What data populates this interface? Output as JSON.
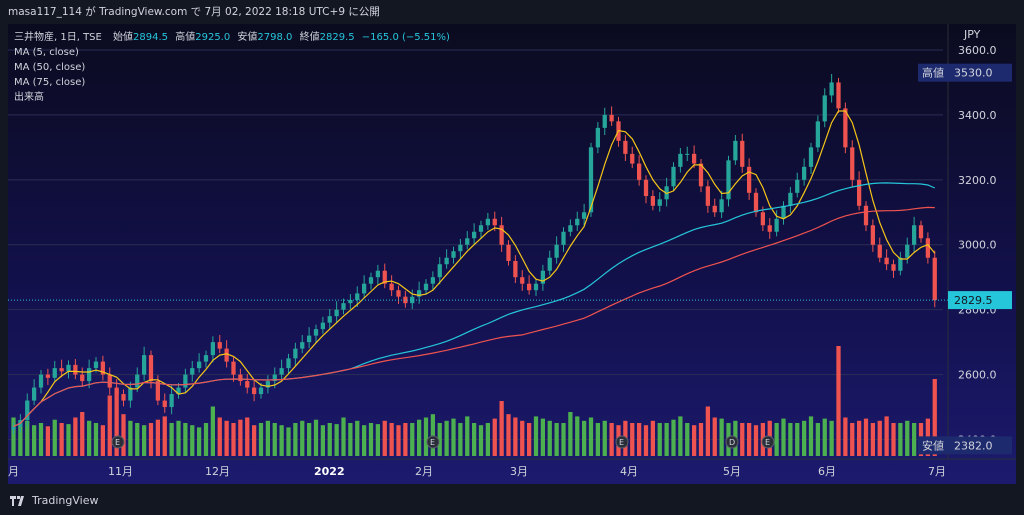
{
  "header": {
    "publisher": "masa117_114 が TradingView.com で 7月 02, 2022 18:18 UTC+9 に公開"
  },
  "legend": {
    "symbol": "三井物産, 1日, TSE",
    "open_label": "始値",
    "open": "2894.5",
    "high_label": "高値",
    "high": "2925.0",
    "low_label": "安値",
    "low": "2798.0",
    "close_label": "終値",
    "close": "2829.5",
    "change": "−165.0 (−5.51%)",
    "indicators": [
      "MA (5, close)",
      "MA (50, close)",
      "MA (75, close)",
      "出来高"
    ]
  },
  "footer": {
    "brand": "TradingView"
  },
  "colors": {
    "up": "#26a69a",
    "down": "#ef5350",
    "ma5": "#f5c518",
    "ma50": "#26c6da",
    "ma75": "#ef5350",
    "volume_up": "#4caf50",
    "volume_down": "#ef5350"
  },
  "chart_data": {
    "type": "candlestick",
    "currency_label": "JPY",
    "y_ticks": [
      "3600.0",
      "3400.0",
      "3200.0",
      "3000.0",
      "2800.0",
      "2600.0",
      "2400.0"
    ],
    "ylim": [
      2340,
      3680
    ],
    "x_labels": [
      "月",
      "11月",
      "12月",
      "2022",
      "2月",
      "3月",
      "4月",
      "5月",
      "6月",
      "7月"
    ],
    "markers": [
      {
        "label": "高値",
        "value": "3530.0"
      },
      {
        "label": "安値",
        "value": "2382.0"
      },
      {
        "label": "",
        "value": "2829.5"
      }
    ],
    "event_icons": [
      "E",
      "E",
      "E",
      "D",
      "E"
    ],
    "closes": [
      2440,
      2460,
      2520,
      2560,
      2600,
      2590,
      2620,
      2610,
      2630,
      2600,
      2580,
      2620,
      2640,
      2600,
      2560,
      2540,
      2520,
      2560,
      2600,
      2660,
      2580,
      2520,
      2500,
      2540,
      2560,
      2600,
      2620,
      2640,
      2660,
      2700,
      2680,
      2640,
      2600,
      2580,
      2560,
      2540,
      2560,
      2580,
      2600,
      2620,
      2650,
      2680,
      2700,
      2720,
      2740,
      2760,
      2780,
      2800,
      2820,
      2830,
      2850,
      2880,
      2900,
      2920,
      2880,
      2860,
      2840,
      2820,
      2840,
      2860,
      2880,
      2900,
      2940,
      2960,
      2980,
      3000,
      3020,
      3040,
      3060,
      3080,
      3060,
      3000,
      2950,
      2900,
      2880,
      2860,
      2880,
      2920,
      2960,
      3000,
      3040,
      3060,
      3080,
      3100,
      3300,
      3360,
      3400,
      3380,
      3320,
      3280,
      3250,
      3200,
      3150,
      3120,
      3140,
      3180,
      3240,
      3280,
      3280,
      3250,
      3180,
      3120,
      3100,
      3140,
      3260,
      3320,
      3240,
      3160,
      3100,
      3060,
      3040,
      3080,
      3120,
      3160,
      3200,
      3240,
      3300,
      3380,
      3460,
      3500,
      3420,
      3300,
      3200,
      3120,
      3060,
      3000,
      2960,
      2940,
      2920,
      2960,
      3000,
      3060,
      3020,
      2960,
      2829.5
    ],
    "volumes": [
      0.35,
      0.3,
      0.32,
      0.28,
      0.3,
      0.27,
      0.33,
      0.3,
      0.29,
      0.35,
      0.4,
      0.32,
      0.3,
      0.28,
      0.55,
      0.6,
      0.38,
      0.32,
      0.3,
      0.28,
      0.3,
      0.33,
      0.36,
      0.3,
      0.32,
      0.3,
      0.28,
      0.26,
      0.3,
      0.45,
      0.35,
      0.32,
      0.3,
      0.33,
      0.35,
      0.28,
      0.3,
      0.32,
      0.3,
      0.28,
      0.26,
      0.3,
      0.32,
      0.3,
      0.33,
      0.28,
      0.3,
      0.29,
      0.35,
      0.3,
      0.32,
      0.28,
      0.3,
      0.29,
      0.32,
      0.3,
      0.28,
      0.3,
      0.3,
      0.33,
      0.35,
      0.38,
      0.3,
      0.32,
      0.34,
      0.3,
      0.36,
      0.3,
      0.28,
      0.3,
      0.34,
      0.5,
      0.38,
      0.35,
      0.32,
      0.3,
      0.36,
      0.34,
      0.32,
      0.3,
      0.3,
      0.4,
      0.36,
      0.32,
      0.35,
      0.3,
      0.32,
      0.3,
      0.28,
      0.32,
      0.3,
      0.3,
      0.28,
      0.32,
      0.3,
      0.3,
      0.33,
      0.36,
      0.3,
      0.28,
      0.3,
      0.45,
      0.35,
      0.34,
      0.3,
      0.32,
      0.3,
      0.3,
      0.28,
      0.3,
      0.32,
      0.3,
      0.34,
      0.3,
      0.3,
      0.32,
      0.36,
      0.3,
      0.34,
      0.32,
      1.0,
      0.35,
      0.3,
      0.32,
      0.34,
      0.3,
      0.32,
      0.36,
      0.3,
      0.3,
      0.32,
      0.3,
      0.3,
      0.34,
      0.7
    ]
  }
}
